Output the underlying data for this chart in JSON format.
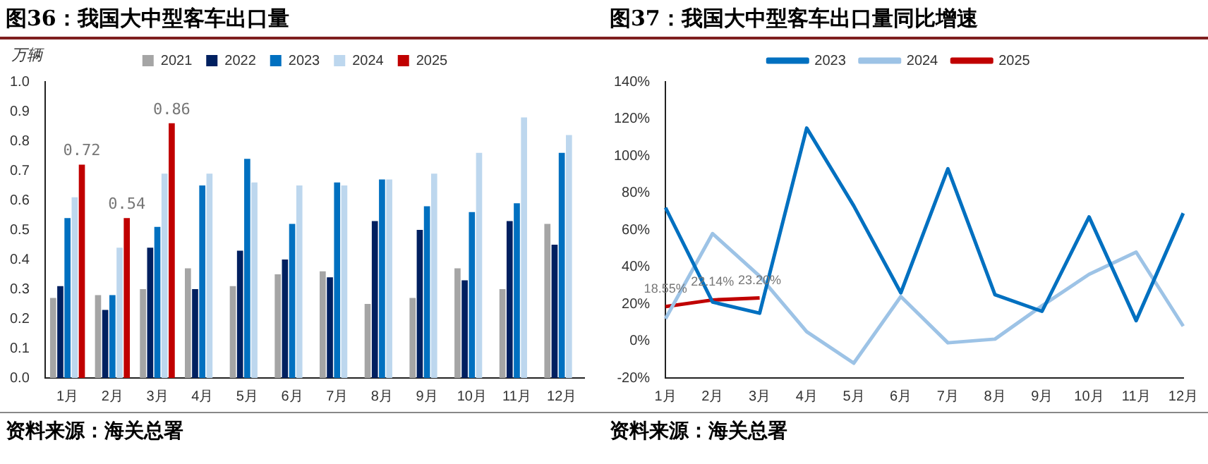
{
  "chart_data": [
    {
      "type": "bar",
      "title": "图36：我国大中型客车出口量",
      "ylabel": "万辆",
      "categories": [
        "1月",
        "2月",
        "3月",
        "4月",
        "5月",
        "6月",
        "7月",
        "8月",
        "9月",
        "10月",
        "11月",
        "12月"
      ],
      "series": [
        {
          "name": "2021",
          "color": "#a5a5a5",
          "values": [
            0.27,
            0.28,
            0.3,
            0.37,
            0.31,
            0.35,
            0.36,
            0.25,
            0.27,
            0.37,
            0.3,
            0.52
          ]
        },
        {
          "name": "2022",
          "color": "#002060",
          "values": [
            0.31,
            0.23,
            0.44,
            0.3,
            0.43,
            0.4,
            0.34,
            0.53,
            0.5,
            0.33,
            0.53,
            0.45
          ]
        },
        {
          "name": "2023",
          "color": "#0070c0",
          "values": [
            0.54,
            0.28,
            0.51,
            0.65,
            0.74,
            0.52,
            0.66,
            0.67,
            0.58,
            0.56,
            0.59,
            0.76
          ]
        },
        {
          "name": "2024",
          "color": "#bdd7ee",
          "values": [
            0.61,
            0.44,
            0.69,
            0.69,
            0.66,
            0.65,
            0.65,
            0.67,
            0.69,
            0.76,
            0.88,
            0.82
          ]
        },
        {
          "name": "2025",
          "color": "#c00000",
          "values": [
            0.72,
            0.54,
            0.86,
            null,
            null,
            null,
            null,
            null,
            null,
            null,
            null,
            null
          ],
          "value_labels": [
            "0.72",
            "0.54",
            "0.86",
            null,
            null,
            null,
            null,
            null,
            null,
            null,
            null,
            null
          ]
        }
      ],
      "ylim": [
        0,
        1
      ],
      "yticks": [
        {
          "value": 0,
          "label": "0.0"
        },
        {
          "value": 0.1,
          "label": "0.1"
        },
        {
          "value": 0.2,
          "label": "0.2"
        },
        {
          "value": 0.3,
          "label": "0.3"
        },
        {
          "value": 0.4,
          "label": "0.4"
        },
        {
          "value": 0.5,
          "label": "0.5"
        },
        {
          "value": 0.6,
          "label": "0.6"
        },
        {
          "value": 0.7,
          "label": "0.7"
        },
        {
          "value": 0.8,
          "label": "0.8"
        },
        {
          "value": 0.9,
          "label": "0.9"
        },
        {
          "value": 1,
          "label": "1.0"
        }
      ],
      "legend": "top",
      "annotations": [
        "资料来源：海关总署"
      ]
    },
    {
      "type": "line",
      "title": "图37：我国大中型客车出口量同比增速",
      "categories": [
        "1月",
        "2月",
        "3月",
        "4月",
        "5月",
        "6月",
        "7月",
        "8月",
        "9月",
        "10月",
        "11月",
        "12月"
      ],
      "series": [
        {
          "name": "2023",
          "color": "#0070c0",
          "values": [
            72,
            21,
            15,
            115,
            73,
            26,
            93,
            25,
            16,
            67,
            11,
            69
          ]
        },
        {
          "name": "2024",
          "color": "#9dc3e6",
          "values": [
            12,
            58,
            35,
            5,
            -12,
            24,
            -1,
            1,
            19,
            36,
            48,
            8
          ]
        },
        {
          "name": "2025",
          "color": "#c00000",
          "values": [
            18.55,
            22.14,
            23.2,
            null,
            null,
            null,
            null,
            null,
            null,
            null,
            null,
            null
          ],
          "value_labels": [
            "18.55%",
            "22.14%",
            "23.20%",
            null,
            null,
            null,
            null,
            null,
            null,
            null,
            null,
            null
          ]
        }
      ],
      "ylim": [
        -20,
        140
      ],
      "yticks": [
        {
          "value": -20,
          "label": "-20%"
        },
        {
          "value": 0,
          "label": "0%"
        },
        {
          "value": 20,
          "label": "20%"
        },
        {
          "value": 40,
          "label": "40%"
        },
        {
          "value": 60,
          "label": "60%"
        },
        {
          "value": 80,
          "label": "80%"
        },
        {
          "value": 100,
          "label": "100%"
        },
        {
          "value": 120,
          "label": "120%"
        },
        {
          "value": 140,
          "label": "140%"
        }
      ],
      "legend": "top",
      "marker": "none",
      "line_style": "solid",
      "annotations": [
        "资料来源：海关总署"
      ]
    }
  ]
}
